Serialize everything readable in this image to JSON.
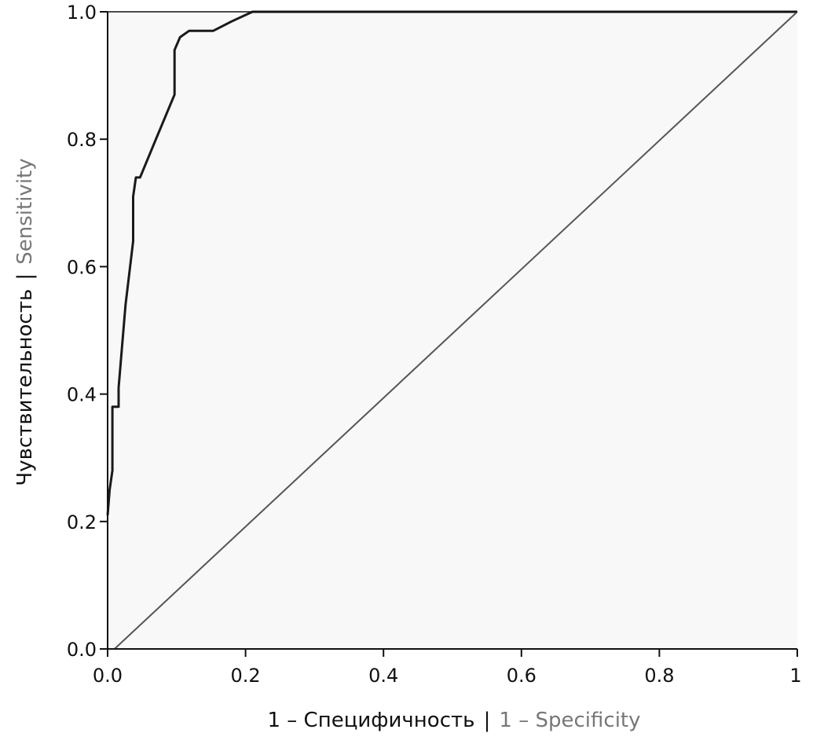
{
  "chart_data": {
    "type": "line",
    "xlabel": "1 – Специфичность",
    "xlabel_en": "1 – Specificity",
    "ylabel": "Чувствительность",
    "ylabel_en": "Sensitivity",
    "separator": "|",
    "xlim": [
      0,
      1
    ],
    "ylim": [
      0,
      1
    ],
    "xticks": [
      "0.0",
      "0.2",
      "0.4",
      "0.6",
      "0.8",
      "1"
    ],
    "yticks": [
      "0.0",
      "0.2",
      "0.4",
      "0.6",
      "0.8",
      "1.0"
    ],
    "grid": false,
    "series": [
      {
        "color": "#1a1a1a",
        "x": [
          0.0,
          0.003,
          0.007,
          0.007,
          0.012,
          0.016,
          0.016,
          0.026,
          0.037,
          0.037,
          0.041,
          0.047,
          0.07,
          0.097,
          0.097,
          0.105,
          0.118,
          0.153,
          0.18,
          0.21,
          1.0
        ],
        "y": [
          0.21,
          0.25,
          0.28,
          0.38,
          0.38,
          0.38,
          0.41,
          0.54,
          0.64,
          0.71,
          0.74,
          0.74,
          0.8,
          0.87,
          0.94,
          0.96,
          0.97,
          0.97,
          0.985,
          1.0,
          1.0
        ]
      },
      {
        "color": "#555555",
        "x": [
          0.01,
          1.0
        ],
        "y": [
          0.0,
          1.0
        ]
      }
    ]
  }
}
